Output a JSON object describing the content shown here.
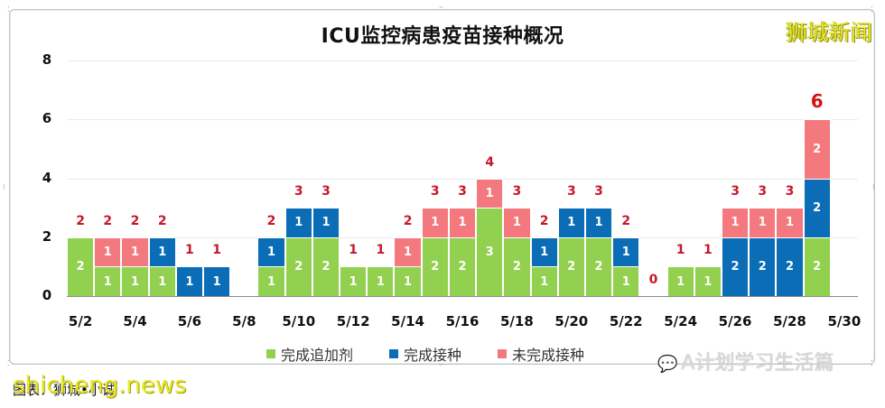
{
  "title": "ICU监控病患疫苗接种概况",
  "brand_watermark": "狮城新闻",
  "footer_caption": "图表：狮城•小诚",
  "site_watermark": "shicheng.news",
  "wechat_watermark": "A计划学习生活篇",
  "colors": {
    "booster": "#92d050",
    "fully": "#0a6db6",
    "not_fully": "#f4797f",
    "total_label": "#c8172b"
  },
  "legend": [
    {
      "label": "完成追加剂",
      "color": "#92d050"
    },
    {
      "label": "完成接种",
      "color": "#0a6db6"
    },
    {
      "label": "未完成接种",
      "color": "#f4797f"
    }
  ],
  "chart_data": {
    "type": "bar",
    "stacked": true,
    "title": "ICU监控病患疫苗接种概况",
    "xlabel": "",
    "ylabel": "",
    "ylim": [
      0,
      8
    ],
    "yticks": [
      0,
      2,
      4,
      6,
      8
    ],
    "grid": true,
    "legend_position": "bottom",
    "categories": [
      "5/2",
      "5/3",
      "5/4",
      "5/5",
      "5/6",
      "5/7",
      "5/8",
      "5/9",
      "5/10",
      "5/11",
      "5/12",
      "5/13",
      "5/14",
      "5/15",
      "5/16",
      "5/17",
      "5/18",
      "5/19",
      "5/20",
      "5/21",
      "5/22",
      "5/23",
      "5/24",
      "5/25",
      "5/26",
      "5/27",
      "5/28",
      "5/29",
      "5/30"
    ],
    "xtick_labels": [
      "5/2",
      "5/4",
      "5/6",
      "5/8",
      "5/10",
      "5/12",
      "5/14",
      "5/16",
      "5/18",
      "5/20",
      "5/22",
      "5/24",
      "5/26",
      "5/28",
      "5/30"
    ],
    "series": [
      {
        "name": "完成追加剂",
        "values": [
          2,
          1,
          1,
          1,
          0,
          0,
          0,
          1,
          2,
          2,
          1,
          1,
          1,
          2,
          2,
          3,
          2,
          1,
          2,
          2,
          1,
          0,
          1,
          1,
          0,
          0,
          0,
          2,
          0
        ]
      },
      {
        "name": "完成接种",
        "values": [
          0,
          0,
          0,
          1,
          1,
          1,
          0,
          1,
          1,
          1,
          0,
          0,
          0,
          0,
          0,
          0,
          0,
          1,
          1,
          1,
          1,
          0,
          0,
          0,
          2,
          2,
          2,
          2,
          0
        ]
      },
      {
        "name": "未完成接种",
        "values": [
          0,
          1,
          1,
          0,
          0,
          0,
          0,
          0,
          0,
          0,
          0,
          0,
          1,
          1,
          1,
          1,
          1,
          0,
          0,
          0,
          0,
          0,
          0,
          0,
          1,
          1,
          1,
          2,
          0
        ]
      }
    ],
    "totals": [
      2,
      2,
      2,
      2,
      1,
      1,
      null,
      2,
      3,
      3,
      1,
      1,
      2,
      3,
      3,
      4,
      3,
      2,
      3,
      3,
      2,
      0,
      1,
      1,
      3,
      3,
      3,
      6,
      null
    ]
  }
}
